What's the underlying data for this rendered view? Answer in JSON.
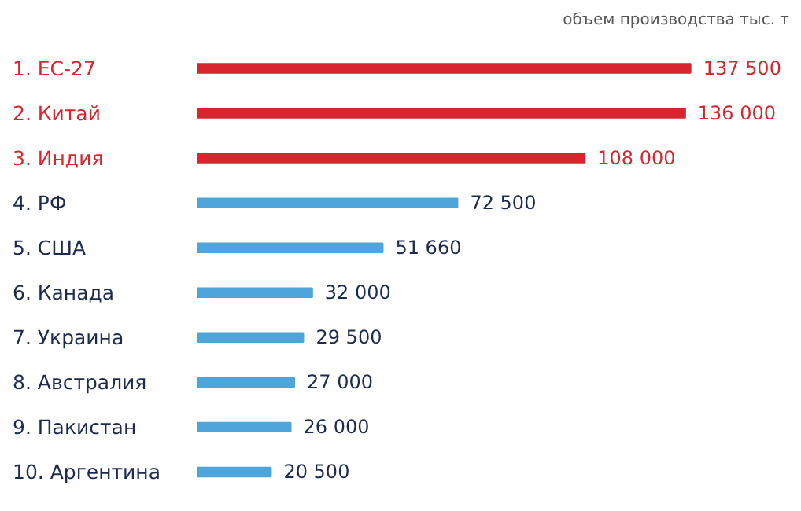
{
  "chart_data": {
    "type": "bar",
    "orientation": "horizontal",
    "subtitle": "объем производства тыс. т",
    "categories": [
      "1. ЕС-27",
      "2. Китай",
      "3. Индия",
      "4. РФ",
      "5. США",
      "6. Канада",
      "7. Украина",
      "8. Австралия",
      "9. Пакистан",
      "10. Аргентина"
    ],
    "values": [
      137500,
      136000,
      108000,
      72500,
      51660,
      32000,
      29500,
      27000,
      26000,
      20500
    ],
    "value_labels": [
      "137 500",
      "136 000",
      "108 000",
      "72 500",
      "51 660",
      "32 000",
      "29 500",
      "27 000",
      "26 000",
      "20 500"
    ],
    "colors": [
      "#d7262e",
      "#d7262e",
      "#d7262e",
      "#4ea5dc",
      "#4ea5dc",
      "#4ea5dc",
      "#4ea5dc",
      "#4ea5dc",
      "#4ea5dc",
      "#4ea5dc"
    ],
    "tick_labels": "y",
    "grid": false
  }
}
